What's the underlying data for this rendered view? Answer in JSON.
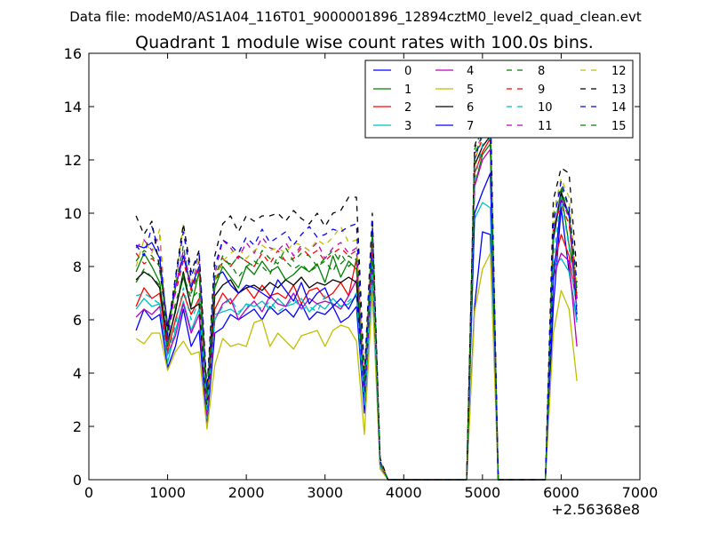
{
  "figure": {
    "file_label": "Data file: modeM0/AS1A04_116T01_9000001896_12894cztM0_level2_quad_clean.evt"
  },
  "chart_data": {
    "type": "line",
    "title": "Quadrant 1 module wise count rates with 100.0s bins.",
    "xlabel": "",
    "ylabel": "",
    "x_offset_label": "+2.56368e8",
    "xlim": [
      0,
      7000
    ],
    "ylim": [
      0,
      16
    ],
    "x_ticks": [
      0,
      1000,
      2000,
      3000,
      4000,
      5000,
      6000,
      7000
    ],
    "x_tick_labels": [
      "0",
      "1000",
      "2000",
      "3000",
      "4000",
      "5000",
      "6000",
      "7000"
    ],
    "y_ticks": [
      0,
      2,
      4,
      6,
      8,
      10,
      12,
      14,
      16
    ],
    "y_tick_labels": [
      "0",
      "2",
      "4",
      "6",
      "8",
      "10",
      "12",
      "14",
      "16"
    ],
    "grid": false,
    "legend": {
      "placement": "top-right",
      "columns": 4
    },
    "x": [
      600,
      700,
      800,
      900,
      1000,
      1100,
      1200,
      1300,
      1400,
      1500,
      1600,
      1700,
      1800,
      1900,
      2000,
      2100,
      2200,
      2300,
      2400,
      2500,
      2600,
      2700,
      2800,
      2900,
      3000,
      3100,
      3200,
      3300,
      3400,
      3500,
      3600,
      3700,
      3800,
      4800,
      4900,
      5000,
      5100,
      5200,
      5300,
      5800,
      5900,
      6000,
      6100,
      6200
    ],
    "series": [
      {
        "name": "0",
        "color": "#0000ff",
        "dash": false,
        "values": [
          5.6,
          6.4,
          6.0,
          6.2,
          4.2,
          5.0,
          6.4,
          5.0,
          5.6,
          2.1,
          5.5,
          5.7,
          6.2,
          6.0,
          6.2,
          6.4,
          6.0,
          6.5,
          6.2,
          6.4,
          6.1,
          6.6,
          6.0,
          6.3,
          6.2,
          6.5,
          5.9,
          6.1,
          6.5,
          2.5,
          7.8,
          0.5,
          0,
          0,
          6.5,
          9.3,
          9.2,
          0,
          0,
          0,
          6.5,
          10.2,
          7.8,
          6.0
        ]
      },
      {
        "name": "1",
        "color": "#008000",
        "dash": false,
        "values": [
          7.8,
          8.5,
          8.0,
          7.4,
          5.0,
          6.4,
          7.6,
          6.5,
          7.8,
          2.8,
          7.2,
          8.0,
          7.6,
          7.2,
          8.0,
          7.7,
          8.2,
          7.8,
          8.0,
          7.5,
          7.7,
          8.0,
          7.8,
          8.1,
          7.4,
          8.4,
          7.6,
          8.2,
          7.9,
          3.4,
          8.6,
          0.6,
          0,
          0,
          11.0,
          12.2,
          12.6,
          0,
          0,
          0,
          9.2,
          10.8,
          8.8,
          7.2
        ]
      },
      {
        "name": "2",
        "color": "#ff0000",
        "dash": false,
        "values": [
          6.5,
          7.2,
          6.8,
          7.0,
          4.8,
          6.0,
          7.0,
          6.2,
          6.8,
          2.5,
          6.4,
          7.0,
          6.6,
          7.0,
          7.2,
          6.8,
          7.3,
          6.9,
          7.0,
          6.8,
          7.3,
          6.6,
          7.1,
          7.2,
          6.8,
          7.0,
          7.4,
          6.9,
          8.3,
          3.0,
          8.6,
          0.6,
          0,
          0,
          11.5,
          12.3,
          12.8,
          0,
          0,
          0,
          8.0,
          9.2,
          8.4,
          6.5
        ]
      },
      {
        "name": "3",
        "color": "#00bfbf",
        "dash": false,
        "values": [
          6.4,
          6.8,
          6.5,
          6.6,
          4.4,
          5.6,
          6.7,
          5.6,
          6.4,
          2.3,
          6.2,
          6.3,
          6.4,
          6.2,
          6.6,
          6.5,
          6.7,
          6.4,
          6.8,
          6.5,
          6.6,
          6.8,
          6.3,
          6.6,
          6.4,
          6.8,
          6.5,
          6.6,
          6.9,
          2.8,
          7.6,
          0.5,
          0,
          0,
          9.8,
          10.4,
          10.2,
          0,
          0,
          0,
          8.0,
          8.3,
          7.8,
          5.9
        ]
      },
      {
        "name": "4",
        "color": "#bf00bf",
        "dash": false,
        "values": [
          6.1,
          6.4,
          6.2,
          6.5,
          4.7,
          5.4,
          6.6,
          5.5,
          6.2,
          2.4,
          6.0,
          6.6,
          6.8,
          6.0,
          6.4,
          6.7,
          6.3,
          6.9,
          6.6,
          6.5,
          7.0,
          6.4,
          6.8,
          6.6,
          6.7,
          6.6,
          6.4,
          6.9,
          7.5,
          2.9,
          8.0,
          0.5,
          0,
          0,
          11.0,
          12.0,
          12.4,
          0,
          0,
          0,
          7.6,
          8.5,
          8.2,
          5.0
        ]
      },
      {
        "name": "5",
        "color": "#bfbf00",
        "dash": false,
        "values": [
          5.3,
          5.1,
          5.5,
          5.5,
          4.1,
          4.8,
          5.2,
          4.7,
          4.8,
          1.9,
          4.3,
          5.3,
          5.0,
          5.1,
          5.0,
          5.9,
          6.0,
          5.0,
          5.5,
          5.2,
          4.9,
          5.4,
          5.5,
          5.6,
          5.0,
          5.6,
          5.8,
          5.7,
          5.2,
          1.7,
          7.0,
          0.4,
          0,
          0,
          6.3,
          7.9,
          8.5,
          0,
          0,
          0,
          5.5,
          7.1,
          6.4,
          3.7
        ]
      },
      {
        "name": "6",
        "color": "#000000",
        "dash": false,
        "values": [
          7.5,
          7.8,
          7.6,
          7.2,
          5.2,
          6.3,
          7.8,
          6.4,
          6.6,
          2.7,
          6.9,
          7.3,
          7.5,
          7.0,
          7.2,
          7.3,
          7.1,
          7.4,
          7.2,
          7.5,
          7.3,
          7.6,
          7.2,
          7.4,
          7.3,
          7.5,
          7.4,
          7.6,
          7.4,
          3.2,
          8.9,
          0.6,
          0,
          0,
          11.8,
          12.5,
          12.9,
          0,
          0,
          0,
          9.0,
          10.8,
          9.9,
          6.8
        ]
      },
      {
        "name": "7",
        "color": "#0000ff",
        "dash": false,
        "values": [
          8.8,
          8.7,
          8.9,
          8.3,
          5.8,
          7.2,
          8.4,
          7.2,
          8.0,
          3.0,
          7.6,
          7.8,
          7.3,
          7.0,
          7.3,
          7.2,
          7.0,
          6.8,
          7.5,
          7.1,
          6.7,
          7.4,
          6.6,
          7.0,
          7.2,
          6.5,
          6.8,
          6.4,
          7.0,
          3.2,
          8.4,
          0.6,
          0,
          0,
          10.0,
          10.8,
          11.5,
          0,
          0,
          0,
          7.5,
          10.5,
          10.0,
          6.2
        ]
      },
      {
        "name": "8",
        "color": "#008000",
        "dash": true,
        "values": [
          7.4,
          7.9,
          7.6,
          7.3,
          5.6,
          6.6,
          7.7,
          6.8,
          7.1,
          2.9,
          7.3,
          8.2,
          8.1,
          7.6,
          8.0,
          8.2,
          8.0,
          7.7,
          8.4,
          8.2,
          7.9,
          8.1,
          7.8,
          8.0,
          8.2,
          7.8,
          8.5,
          8.0,
          8.3,
          3.4,
          8.5,
          0.6,
          0,
          0,
          12.4,
          13.2,
          13.7,
          0,
          0,
          0,
          9.8,
          11.0,
          10.2,
          7.0
        ]
      },
      {
        "name": "9",
        "color": "#ff0000",
        "dash": true,
        "values": [
          8.5,
          8.1,
          8.3,
          8.0,
          5.7,
          7.0,
          8.2,
          7.1,
          7.9,
          3.0,
          7.4,
          8.3,
          8.0,
          8.4,
          8.2,
          8.0,
          8.5,
          8.1,
          8.6,
          8.2,
          8.3,
          8.7,
          8.4,
          8.6,
          8.2,
          8.5,
          8.7,
          8.4,
          8.6,
          3.6,
          9.0,
          0.6,
          0,
          0,
          12.0,
          12.8,
          13.3,
          0,
          0,
          0,
          9.5,
          10.3,
          9.6,
          6.8
        ]
      },
      {
        "name": "10",
        "color": "#00bfbf",
        "dash": true,
        "values": [
          6.9,
          7.0,
          6.8,
          6.6,
          4.6,
          5.8,
          7.2,
          6.0,
          6.7,
          2.6,
          6.0,
          6.5,
          6.8,
          6.3,
          6.5,
          6.6,
          6.4,
          6.7,
          6.3,
          6.5,
          6.8,
          6.4,
          6.5,
          6.3,
          6.9,
          6.6,
          6.5,
          6.7,
          7.0,
          2.9,
          8.0,
          0.5,
          0,
          0,
          11.2,
          12.6,
          12.8,
          0,
          0,
          0,
          8.3,
          10.6,
          8.7,
          6.3
        ]
      },
      {
        "name": "11",
        "color": "#bf00bf",
        "dash": true,
        "values": [
          8.7,
          9.0,
          8.6,
          9.2,
          5.2,
          7.2,
          8.6,
          7.3,
          8.2,
          3.1,
          7.7,
          9.0,
          8.7,
          8.3,
          8.9,
          8.5,
          9.1,
          8.7,
          8.6,
          8.9,
          8.4,
          8.8,
          8.6,
          8.9,
          8.3,
          8.7,
          8.9,
          8.5,
          8.7,
          3.5,
          9.0,
          0.6,
          0,
          0,
          12.2,
          13.0,
          13.4,
          0,
          0,
          0,
          9.4,
          10.6,
          9.8,
          6.6
        ]
      },
      {
        "name": "12",
        "color": "#bfbf00",
        "dash": true,
        "values": [
          8.0,
          9.0,
          8.5,
          9.4,
          5.3,
          7.3,
          9.6,
          7.4,
          8.3,
          3.0,
          7.5,
          8.2,
          8.5,
          8.7,
          8.3,
          8.6,
          8.8,
          8.6,
          8.7,
          8.5,
          8.9,
          8.8,
          8.6,
          9.0,
          8.8,
          9.1,
          9.5,
          8.9,
          9.0,
          3.8,
          9.6,
          0.7,
          0,
          0,
          11.9,
          13.1,
          13.6,
          0,
          0,
          0,
          10.0,
          11.3,
          10.6,
          7.2
        ]
      },
      {
        "name": "13",
        "color": "#000000",
        "dash": true,
        "values": [
          9.9,
          9.2,
          9.7,
          7.9,
          5.6,
          7.6,
          9.6,
          7.8,
          8.6,
          3.4,
          8.4,
          9.6,
          9.9,
          9.3,
          9.9,
          9.7,
          9.9,
          9.9,
          10.0,
          9.7,
          10.1,
          9.8,
          9.6,
          10.0,
          9.5,
          10.0,
          10.1,
          10.6,
          10.6,
          3.9,
          10.0,
          0.8,
          0,
          0,
          12.5,
          13.5,
          14.2,
          0,
          0,
          0,
          10.5,
          11.7,
          11.5,
          7.8
        ]
      },
      {
        "name": "14",
        "color": "#0000ff",
        "dash": true,
        "values": [
          8.8,
          8.4,
          9.5,
          8.5,
          5.4,
          7.5,
          9.3,
          7.6,
          8.5,
          3.2,
          8.0,
          9.0,
          8.8,
          8.5,
          9.1,
          8.8,
          9.4,
          8.9,
          9.1,
          9.3,
          8.8,
          9.2,
          9.5,
          9.1,
          9.2,
          9.4,
          9.3,
          9.5,
          9.6,
          3.5,
          9.7,
          0.7,
          0,
          0,
          12.0,
          13.0,
          13.5,
          0,
          0,
          0,
          9.6,
          11.2,
          10.2,
          7.4
        ]
      },
      {
        "name": "15",
        "color": "#008000",
        "dash": true,
        "values": [
          8.2,
          8.6,
          8.4,
          8.0,
          5.6,
          7.2,
          8.8,
          7.0,
          7.8,
          3.1,
          7.6,
          8.4,
          8.0,
          8.4,
          8.2,
          8.0,
          8.6,
          8.3,
          8.1,
          8.7,
          8.2,
          8.5,
          8.4,
          8.0,
          8.3,
          8.6,
          8.1,
          8.4,
          8.2,
          3.6,
          9.2,
          0.7,
          0,
          0,
          12.2,
          12.9,
          13.4,
          0,
          0,
          0,
          9.2,
          10.9,
          9.9,
          7.1
        ]
      }
    ]
  }
}
